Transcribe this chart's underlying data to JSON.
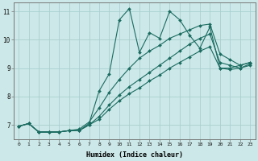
{
  "xlabel": "Humidex (Indice chaleur)",
  "bg_color": "#cce8e8",
  "grid_color": "#aacfcf",
  "line_color": "#1a6b60",
  "xlim": [
    -0.5,
    23.5
  ],
  "ylim": [
    6.5,
    11.3
  ],
  "xticks": [
    0,
    1,
    2,
    3,
    4,
    5,
    6,
    7,
    8,
    9,
    10,
    11,
    12,
    13,
    14,
    15,
    16,
    17,
    18,
    19,
    20,
    21,
    22,
    23
  ],
  "yticks": [
    7,
    8,
    9,
    10,
    11
  ],
  "series": [
    {
      "x": [
        0,
        1,
        2,
        3,
        4,
        5,
        6,
        7,
        8,
        9,
        10,
        11,
        12,
        13,
        14,
        15,
        16,
        17,
        18,
        19,
        20,
        21,
        22,
        23
      ],
      "y": [
        6.95,
        7.05,
        6.75,
        6.75,
        6.75,
        6.8,
        6.8,
        7.05,
        8.2,
        8.8,
        10.7,
        11.1,
        9.55,
        10.25,
        10.05,
        11.0,
        10.7,
        10.15,
        9.7,
        10.45,
        9.0,
        9.0,
        9.1,
        9.2
      ]
    },
    {
      "x": [
        0,
        1,
        2,
        3,
        4,
        5,
        6,
        7,
        8,
        9,
        10,
        11,
        12,
        13,
        14,
        15,
        16,
        17,
        18,
        19,
        20,
        21,
        22,
        23
      ],
      "y": [
        6.95,
        7.05,
        6.75,
        6.75,
        6.75,
        6.8,
        6.85,
        7.1,
        7.6,
        8.15,
        8.6,
        9.0,
        9.35,
        9.6,
        9.8,
        10.05,
        10.2,
        10.35,
        10.5,
        10.55,
        9.5,
        9.3,
        9.1,
        9.2
      ]
    },
    {
      "x": [
        0,
        1,
        2,
        3,
        4,
        5,
        6,
        7,
        8,
        9,
        10,
        11,
        12,
        13,
        14,
        15,
        16,
        17,
        18,
        19,
        20,
        21,
        22,
        23
      ],
      "y": [
        6.95,
        7.05,
        6.75,
        6.75,
        6.75,
        6.8,
        6.8,
        7.0,
        7.3,
        7.7,
        8.05,
        8.35,
        8.6,
        8.85,
        9.1,
        9.35,
        9.6,
        9.85,
        10.05,
        10.2,
        9.2,
        9.1,
        9.0,
        9.15
      ]
    },
    {
      "x": [
        0,
        1,
        2,
        3,
        4,
        5,
        6,
        7,
        8,
        9,
        10,
        11,
        12,
        13,
        14,
        15,
        16,
        17,
        18,
        19,
        20,
        21,
        22,
        23
      ],
      "y": [
        6.95,
        7.05,
        6.75,
        6.75,
        6.75,
        6.8,
        6.8,
        7.0,
        7.2,
        7.55,
        7.85,
        8.1,
        8.3,
        8.55,
        8.75,
        9.0,
        9.2,
        9.4,
        9.6,
        9.75,
        9.0,
        8.95,
        9.0,
        9.1
      ]
    }
  ]
}
